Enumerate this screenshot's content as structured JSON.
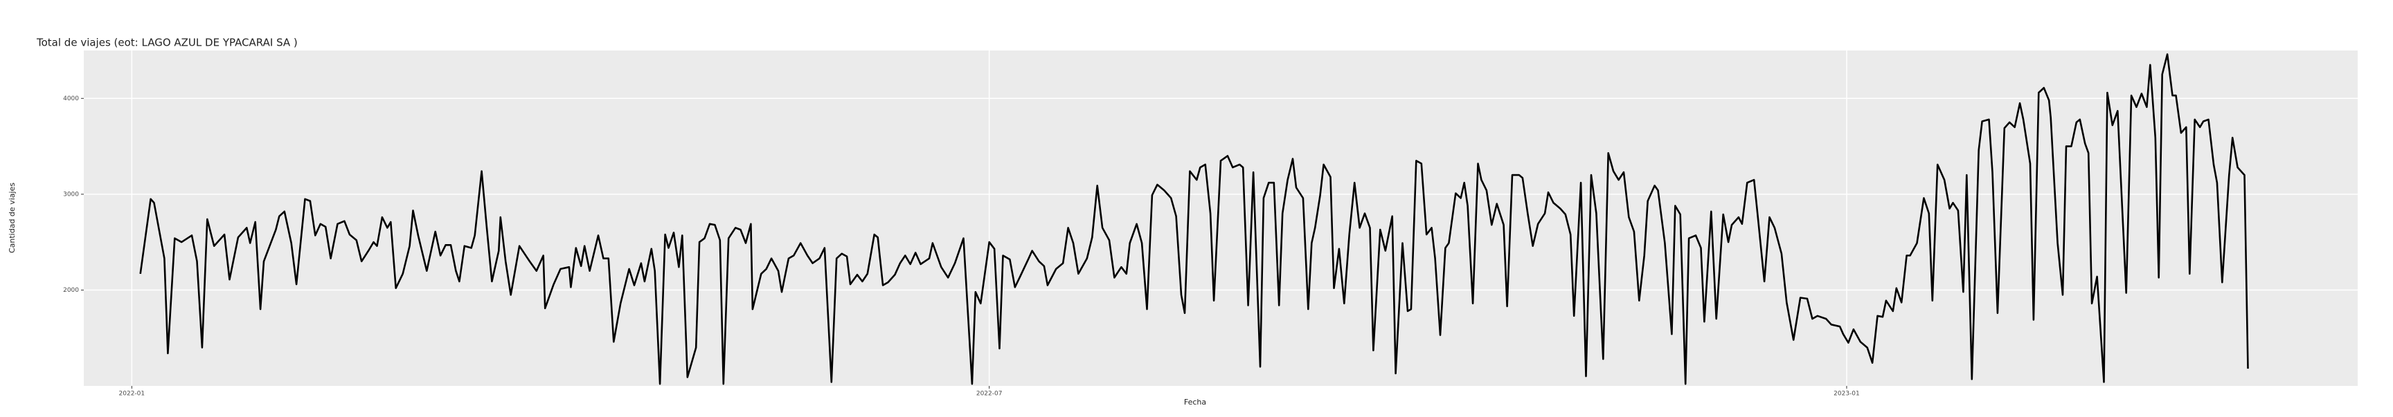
{
  "chart_data": {
    "type": "line",
    "title": "Total de viajes (eot: LAGO AZUL DE YPACARAI SA )",
    "x_label": "Fecha",
    "y_label": "Cantidad de viajes",
    "color": "#000000",
    "grid": true,
    "xlim": [
      2021.972,
      2023.298
    ],
    "ylim": [
      1000,
      4500
    ],
    "xticks": [
      {
        "value": 2022.0,
        "label": "2022-01"
      },
      {
        "value": 2022.5,
        "label": "2022-07"
      },
      {
        "value": 2023.0,
        "label": "2023-01"
      }
    ],
    "yticks": [
      2000,
      3000,
      4000
    ],
    "x": [
      2022.005,
      2022.011,
      2022.013,
      2022.019,
      2022.021,
      2022.025,
      2022.029,
      2022.035,
      2022.038,
      2022.041,
      2022.044,
      2022.048,
      2022.054,
      2022.057,
      2022.062,
      2022.067,
      2022.069,
      2022.072,
      2022.075,
      2022.077,
      2022.084,
      2022.086,
      2022.089,
      2022.093,
      2022.096,
      2022.101,
      2022.104,
      2022.107,
      2022.11,
      2022.113,
      2022.116,
      2022.12,
      2022.124,
      2022.127,
      2022.131,
      2022.134,
      2022.138,
      2022.141,
      2022.143,
      2022.146,
      2022.149,
      2022.151,
      2022.154,
      2022.158,
      2022.162,
      2022.164,
      2022.167,
      2022.172,
      2022.177,
      2022.18,
      2022.183,
      2022.186,
      2022.189,
      2022.191,
      2022.194,
      2022.198,
      2022.2,
      2022.204,
      2022.207,
      2022.21,
      2022.214,
      2022.215,
      2022.218,
      2022.221,
      2022.226,
      2022.232,
      2022.236,
      2022.24,
      2022.241,
      2022.246,
      2022.25,
      2022.255,
      2022.256,
      2022.259,
      2022.262,
      2022.264,
      2022.267,
      2022.272,
      2022.275,
      2022.278,
      2022.281,
      2022.285,
      2022.29,
      2022.293,
      2022.297,
      2022.299,
      2022.303,
      2022.305,
      2022.308,
      2022.311,
      2022.313,
      2022.316,
      2022.319,
      2022.321,
      2022.324,
      2022.329,
      2022.331,
      2022.334,
      2022.337,
      2022.34,
      2022.343,
      2022.345,
      2022.348,
      2022.352,
      2022.355,
      2022.358,
      2022.361,
      2022.362,
      2022.367,
      2022.37,
      2022.373,
      2022.377,
      2022.379,
      2022.383,
      2022.386,
      2022.39,
      2022.394,
      2022.397,
      2022.401,
      2022.404,
      2022.408,
      2022.411,
      2022.414,
      2022.417,
      2022.419,
      2022.423,
      2022.426,
      2022.429,
      2022.433,
      2022.435,
      2022.438,
      2022.441,
      2022.445,
      2022.448,
      2022.451,
      2022.454,
      2022.457,
      2022.46,
      2022.465,
      2022.467,
      2022.472,
      2022.476,
      2022.48,
      2022.485,
      2022.49,
      2022.492,
      2022.495,
      2022.5,
      2022.503,
      2022.506,
      2022.508,
      2022.512,
      2022.515,
      2022.518,
      2022.523,
      2022.525,
      2022.529,
      2022.532,
      2022.534,
      2022.539,
      2022.543,
      2022.546,
      2022.549,
      2022.552,
      2022.557,
      2022.56,
      2022.563,
      2022.566,
      2022.57,
      2022.573,
      2022.577,
      2022.58,
      2022.582,
      2022.586,
      2022.589,
      2022.592,
      2022.595,
      2022.598,
      2022.602,
      2022.606,
      2022.609,
      2022.612,
      2022.614,
      2022.617,
      2022.621,
      2022.623,
      2022.626,
      2022.629,
      2022.631,
      2022.635,
      2022.639,
      2022.642,
      2022.646,
      2022.648,
      2022.651,
      2022.654,
      2022.658,
      2022.66,
      2022.663,
      2022.666,
      2022.669,
      2022.671,
      2022.674,
      2022.677,
      2022.679,
      2022.683,
      2022.686,
      2022.688,
      2022.69,
      2022.693,
      2022.695,
      2022.699,
      2022.701,
      2022.704,
      2022.707,
      2022.71,
      2022.713,
      2022.716,
      2022.719,
      2022.722,
      2022.724,
      2022.728,
      2022.731,
      2022.735,
      2022.737,
      2022.741,
      2022.744,
      2022.746,
      2022.749,
      2022.752,
      2022.755,
      2022.758,
      2022.76,
      2022.763,
      2022.766,
      2022.768,
      2022.772,
      2022.775,
      2022.777,
      2022.779,
      2022.782,
      2022.785,
      2022.787,
      2022.79,
      2022.793,
      2022.796,
      2022.8,
      2022.802,
      2022.805,
      2022.809,
      2022.811,
      2022.814,
      2022.817,
      2022.82,
      2022.824,
      2022.826,
      2022.829,
      2022.833,
      2022.836,
      2022.839,
      2022.841,
      2022.845,
      2022.848,
      2022.851,
      2022.854,
      2022.858,
      2022.861,
      2022.864,
      2022.867,
      2022.87,
      2022.873,
      2022.876,
      2022.879,
      2022.882,
      2022.884,
      2022.888,
      2022.89,
      2022.894,
      2022.898,
      2022.9,
      2022.903,
      2022.906,
      2022.908,
      2022.912,
      2022.915,
      2022.917,
      2022.921,
      2022.924,
      2022.928,
      2022.931,
      2022.933,
      2022.937,
      2022.939,
      2022.942,
      2022.946,
      2022.948,
      2022.952,
      2022.955,
      2022.958,
      2022.962,
      2022.965,
      2022.969,
      2022.973,
      2022.977,
      2022.98,
      2022.983,
      2022.988,
      2022.991,
      2022.996,
      2022.998,
      2023.001,
      2023.004,
      2023.008,
      2023.012,
      2023.015,
      2023.018,
      2023.021,
      2023.023,
      2023.027,
      2023.029,
      2023.032,
      2023.035,
      2023.037,
      2023.041,
      2023.045,
      2023.048,
      2023.05,
      2023.053,
      2023.057,
      2023.06,
      2023.062,
      2023.065,
      2023.068,
      2023.07,
      2023.073,
      2023.077,
      2023.079,
      2023.083,
      2023.085,
      2023.088,
      2023.092,
      2023.095,
      2023.098,
      2023.101,
      2023.103,
      2023.107,
      2023.109,
      2023.112,
      2023.115,
      2023.118,
      2023.119,
      2023.123,
      2023.126,
      2023.128,
      2023.131,
      2023.134,
      2023.136,
      2023.139,
      2023.141,
      2023.143,
      2023.146,
      2023.15,
      2023.152,
      2023.155,
      2023.158,
      2023.16,
      2023.163,
      2023.166,
      2023.169,
      2023.172,
      2023.175,
      2023.177,
      2023.18,
      2023.182,
      2023.184,
      2023.187,
      2023.19,
      2023.192,
      2023.195,
      2023.198,
      2023.2,
      2023.203,
      2023.206,
      2023.208,
      2023.211,
      2023.214,
      2023.216,
      2023.219,
      2023.223,
      2023.225,
      2023.228,
      2023.232,
      2023.234
    ],
    "values": [
      2170,
      2950,
      2910,
      2330,
      1340,
      2540,
      2500,
      2570,
      2300,
      1400,
      2740,
      2460,
      2580,
      2110,
      2550,
      2650,
      2490,
      2710,
      1800,
      2300,
      2630,
      2770,
      2820,
      2490,
      2060,
      2950,
      2930,
      2570,
      2690,
      2660,
      2330,
      2690,
      2720,
      2580,
      2520,
      2300,
      2410,
      2500,
      2460,
      2760,
      2650,
      2710,
      2020,
      2170,
      2460,
      2830,
      2570,
      2200,
      2610,
      2360,
      2470,
      2470,
      2200,
      2090,
      2460,
      2440,
      2570,
      3240,
      2650,
      2090,
      2410,
      2760,
      2300,
      1950,
      2460,
      2300,
      2200,
      2360,
      1810,
      2060,
      2220,
      2240,
      2030,
      2440,
      2250,
      2460,
      2200,
      2570,
      2330,
      2330,
      1460,
      1860,
      2220,
      2050,
      2280,
      2090,
      2430,
      2200,
      1020,
      2580,
      2440,
      2600,
      2240,
      2570,
      1090,
      1400,
      2500,
      2540,
      2690,
      2680,
      2520,
      1020,
      2540,
      2650,
      2630,
      2490,
      2690,
      1800,
      2170,
      2220,
      2330,
      2200,
      1980,
      2330,
      2360,
      2490,
      2360,
      2280,
      2330,
      2440,
      1040,
      2330,
      2380,
      2350,
      2060,
      2160,
      2090,
      2170,
      2580,
      2550,
      2050,
      2080,
      2160,
      2280,
      2360,
      2270,
      2390,
      2270,
      2330,
      2490,
      2240,
      2130,
      2280,
      2540,
      1020,
      1980,
      1860,
      2500,
      2430,
      1390,
      2360,
      2320,
      2030,
      2140,
      2330,
      2410,
      2300,
      2250,
      2050,
      2220,
      2280,
      2650,
      2490,
      2170,
      2330,
      2550,
      3090,
      2650,
      2520,
      2130,
      2240,
      2170,
      2490,
      2690,
      2490,
      1800,
      2990,
      3100,
      3040,
      2960,
      2770,
      1950,
      1760,
      3240,
      3150,
      3280,
      3310,
      2800,
      1890,
      3350,
      3400,
      3280,
      3310,
      3280,
      1840,
      3230,
      1200,
      2960,
      3120,
      3120,
      1840,
      2800,
      3150,
      3370,
      3070,
      2960,
      1800,
      2490,
      2650,
      2990,
      3310,
      3180,
      2020,
      2430,
      1860,
      2580,
      3120,
      2650,
      2800,
      2650,
      1370,
      2630,
      2410,
      2770,
      1130,
      2490,
      1780,
      1800,
      3350,
      3320,
      2580,
      2650,
      2330,
      1530,
      2440,
      2490,
      3010,
      2960,
      3120,
      2880,
      1860,
      3320,
      3150,
      3040,
      2680,
      2900,
      2680,
      1830,
      3200,
      3200,
      3170,
      2800,
      2460,
      2690,
      2800,
      3020,
      2910,
      2850,
      2790,
      2580,
      1730,
      3120,
      1100,
      3200,
      2800,
      1280,
      3430,
      3240,
      3150,
      3230,
      2760,
      2610,
      1890,
      2360,
      2930,
      3090,
      3040,
      2490,
      1540,
      2880,
      2790,
      1020,
      2540,
      2570,
      2440,
      1670,
      2820,
      1700,
      2790,
      2500,
      2680,
      2760,
      2690,
      3120,
      3150,
      2800,
      2090,
      2760,
      2650,
      2380,
      1870,
      1480,
      1920,
      1910,
      1700,
      1730,
      1700,
      1640,
      1620,
      1540,
      1450,
      1590,
      1460,
      1400,
      1240,
      1730,
      1720,
      1890,
      1780,
      2020,
      1870,
      2360,
      2360,
      2490,
      2960,
      2800,
      1890,
      3310,
      3150,
      2850,
      2910,
      2830,
      1980,
      3200,
      1070,
      3460,
      3760,
      3780,
      3230,
      1760,
      3690,
      3750,
      3700,
      3950,
      3780,
      3320,
      1690,
      4060,
      4110,
      3980,
      3800,
      2490,
      1950,
      3500,
      3500,
      3750,
      3780,
      3530,
      3430,
      1860,
      2140,
      1040,
      4060,
      3720,
      3870,
      3120,
      1970,
      4030,
      3910,
      4050,
      3910,
      4350,
      3590,
      2130,
      4250,
      4460,
      4030,
      4030,
      3640,
      3700,
      2170,
      3780,
      3700,
      3760,
      3780,
      3310,
      3120,
      2080,
      3200,
      3590,
      3280,
      3200,
      1180
    ]
  }
}
